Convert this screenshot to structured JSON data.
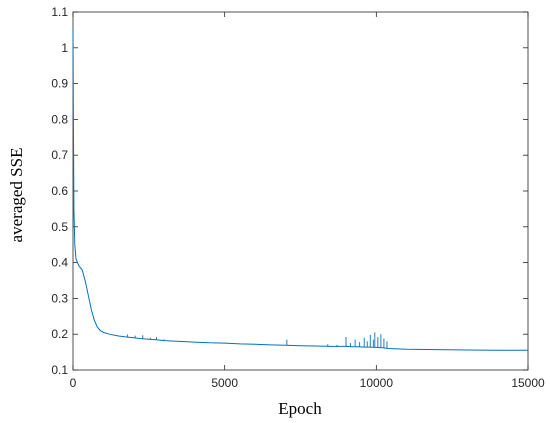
{
  "chart_data": {
    "type": "line",
    "title": "",
    "xlabel": "Epoch",
    "ylabel": "averaged SSE",
    "xlim": [
      0,
      15000
    ],
    "ylim": [
      0.1,
      1.1
    ],
    "xticks": [
      0,
      5000,
      10000,
      15000
    ],
    "xtick_labels": [
      "0",
      "5000",
      "10000",
      "15000"
    ],
    "yticks": [
      0.1,
      0.2,
      0.3,
      0.4,
      0.5,
      0.6,
      0.7,
      0.8,
      0.9,
      1.0,
      1.1
    ],
    "ytick_labels": [
      "0.1",
      "0.2",
      "0.3",
      "0.4",
      "0.5",
      "0.6",
      "0.7",
      "0.8",
      "0.9",
      "1",
      "1.1"
    ],
    "grid": false,
    "legend": "none",
    "line_color": "#0072BD",
    "series": [
      {
        "x": [
          0,
          10,
          30,
          60,
          100,
          150,
          200,
          300,
          400,
          500,
          600,
          700,
          800,
          900,
          1000,
          1200,
          1500,
          1800,
          2000,
          2200,
          2500,
          2800,
          3000,
          3500,
          4000,
          4500,
          5000,
          5500,
          6000,
          6500,
          7000,
          7500,
          8000,
          8500,
          9000,
          9200,
          9400,
          9600,
          9800,
          10000,
          10200,
          10400,
          11000,
          12000,
          13000,
          14000,
          15000
        ],
        "y": [
          1.05,
          0.85,
          0.55,
          0.45,
          0.41,
          0.4,
          0.39,
          0.38,
          0.35,
          0.31,
          0.27,
          0.24,
          0.22,
          0.21,
          0.205,
          0.2,
          0.195,
          0.192,
          0.19,
          0.188,
          0.186,
          0.184,
          0.182,
          0.18,
          0.178,
          0.176,
          0.175,
          0.173,
          0.172,
          0.17,
          0.169,
          0.168,
          0.167,
          0.166,
          0.166,
          0.165,
          0.165,
          0.164,
          0.164,
          0.163,
          0.162,
          0.16,
          0.158,
          0.157,
          0.156,
          0.155,
          0.155
        ]
      }
    ],
    "noise_spikes": [
      {
        "x": 1800,
        "y": 0.199
      },
      {
        "x": 2050,
        "y": 0.196
      },
      {
        "x": 2300,
        "y": 0.197
      },
      {
        "x": 2550,
        "y": 0.19
      },
      {
        "x": 2750,
        "y": 0.192
      },
      {
        "x": 3000,
        "y": 0.186
      },
      {
        "x": 5000,
        "y": 0.176
      },
      {
        "x": 5250,
        "y": 0.175
      },
      {
        "x": 7050,
        "y": 0.185
      },
      {
        "x": 8400,
        "y": 0.172
      },
      {
        "x": 8700,
        "y": 0.17
      },
      {
        "x": 9000,
        "y": 0.192
      },
      {
        "x": 9150,
        "y": 0.175
      },
      {
        "x": 9300,
        "y": 0.185
      },
      {
        "x": 9450,
        "y": 0.178
      },
      {
        "x": 9600,
        "y": 0.19
      },
      {
        "x": 9700,
        "y": 0.18
      },
      {
        "x": 9800,
        "y": 0.198
      },
      {
        "x": 9900,
        "y": 0.185
      },
      {
        "x": 9950,
        "y": 0.205
      },
      {
        "x": 10050,
        "y": 0.192
      },
      {
        "x": 10150,
        "y": 0.2
      },
      {
        "x": 10250,
        "y": 0.188
      },
      {
        "x": 10350,
        "y": 0.18
      }
    ]
  }
}
